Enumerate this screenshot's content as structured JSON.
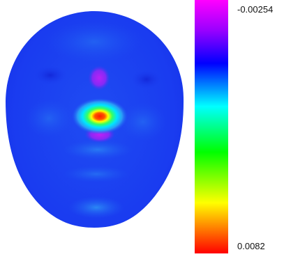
{
  "figure": {
    "subject": "face-surface-heatmap"
  },
  "colorbar": {
    "max_label": "-0.00254",
    "min_label": "0.0082",
    "max_value": -0.00254,
    "min_value": 0.0082,
    "gradient_top_to_bottom": [
      "#ff00ff",
      "#8800ff",
      "#0000ff",
      "#00ffff",
      "#00ff00",
      "#ffff00",
      "#ff0000"
    ]
  },
  "colors": {
    "face_base": "#1a3df0",
    "face_light": "#2e8ff5",
    "nose_tip_hot": "#ff2200",
    "nose_ring_yellow": "#ffff00",
    "nose_ring_green": "#00ff66",
    "nose_ring_cyan": "#00e5ff",
    "magenta": "#b01ef5"
  }
}
